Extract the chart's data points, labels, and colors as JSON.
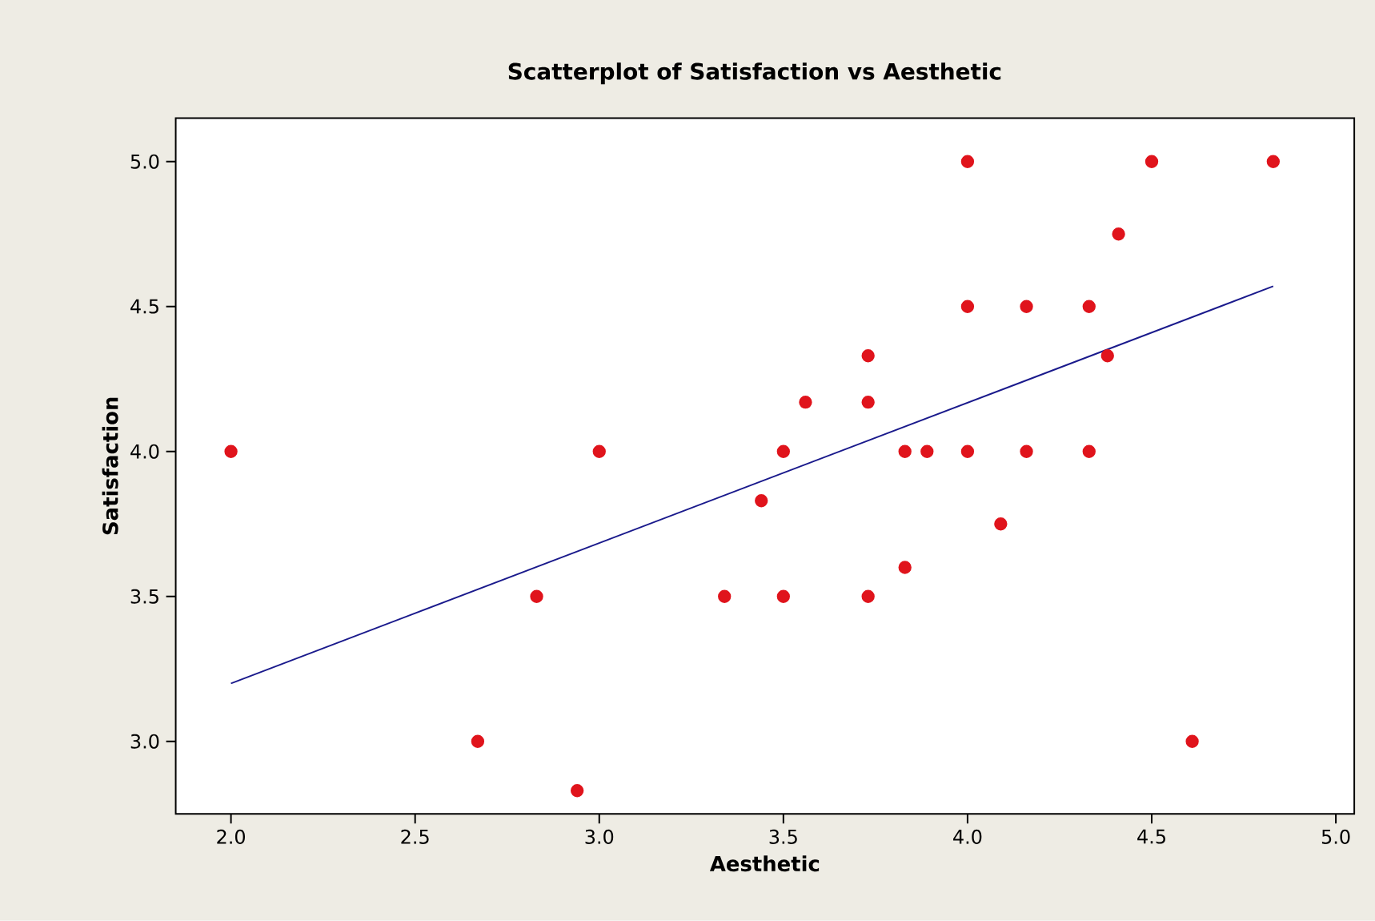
{
  "chart_data": {
    "type": "scatter",
    "title": "Scatterplot of Satisfaction vs Aesthetic",
    "xlabel": "Aesthetic",
    "ylabel": "Satisfaction",
    "xlim": [
      1.85,
      5.05
    ],
    "ylim": [
      2.75,
      5.15
    ],
    "xticks": [
      {
        "value": 2.0,
        "label": "2.0"
      },
      {
        "value": 2.5,
        "label": "2.5"
      },
      {
        "value": 3.0,
        "label": "3.0"
      },
      {
        "value": 3.5,
        "label": "3.5"
      },
      {
        "value": 4.0,
        "label": "4.0"
      },
      {
        "value": 4.5,
        "label": "4.5"
      },
      {
        "value": 5.0,
        "label": "5.0"
      }
    ],
    "yticks": [
      {
        "value": 3.0,
        "label": "3.0"
      },
      {
        "value": 3.5,
        "label": "3.5"
      },
      {
        "value": 4.0,
        "label": "4.0"
      },
      {
        "value": 4.5,
        "label": "4.5"
      },
      {
        "value": 5.0,
        "label": "5.0"
      }
    ],
    "series": [
      {
        "type": "scatter",
        "marker": "circle",
        "color": "#e0141c",
        "x": [
          2.0,
          2.67,
          2.83,
          2.94,
          3.0,
          3.34,
          3.44,
          3.5,
          3.5,
          3.56,
          3.73,
          3.73,
          3.73,
          3.83,
          3.83,
          3.89,
          4.0,
          4.0,
          4.0,
          4.09,
          4.16,
          4.16,
          4.33,
          4.33,
          4.38,
          4.41,
          4.5,
          4.61,
          4.83
        ],
        "values": [
          4.0,
          3.0,
          3.5,
          2.83,
          4.0,
          3.5,
          3.83,
          3.5,
          4.0,
          4.17,
          4.17,
          4.33,
          3.5,
          4.0,
          3.6,
          4.0,
          5.0,
          4.5,
          4.0,
          3.75,
          4.5,
          4.0,
          4.5,
          4.0,
          4.33,
          4.75,
          5.0,
          3.0,
          5.0
        ]
      },
      {
        "type": "line",
        "marker": "none",
        "color": "#1a1a8c",
        "x": [
          2.0,
          4.83
        ],
        "values": [
          3.2,
          4.57
        ]
      }
    ]
  }
}
